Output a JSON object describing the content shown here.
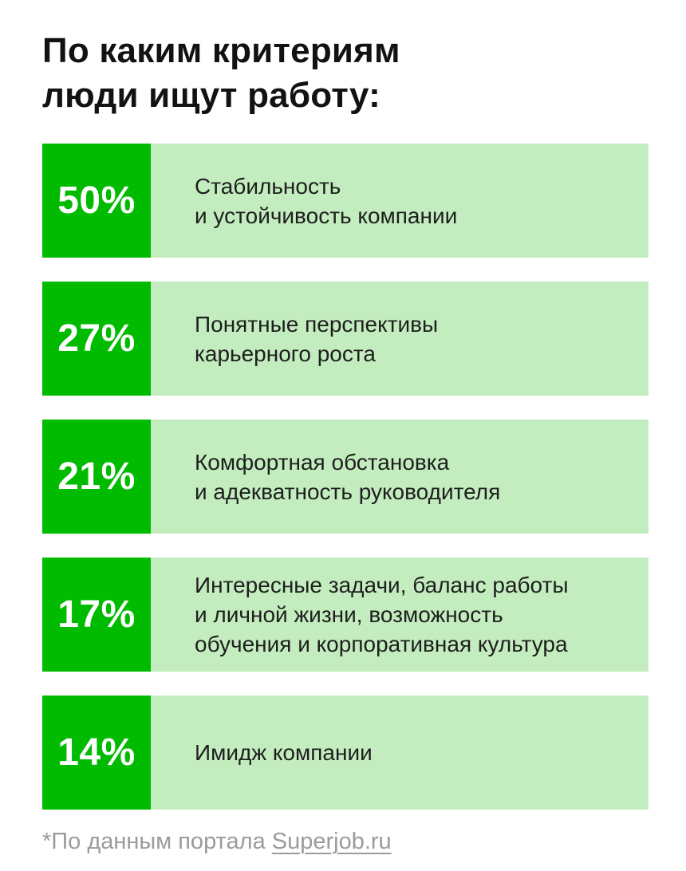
{
  "title": {
    "text": "По каким критериям\nлюди ищут работу:"
  },
  "rows": [
    {
      "percent": "50%",
      "label": "Стабильность\nи устойчивость компании"
    },
    {
      "percent": "27%",
      "label": "Понятные перспективы\nкарьерного роста"
    },
    {
      "percent": "21%",
      "label": "Комфортная обстановка\nи адекватность руководителя"
    },
    {
      "percent": "17%",
      "label": "Интересные задачи, баланс работы\nи личной жизни, возможность\nобучения и корпоративная культура"
    },
    {
      "percent": "14%",
      "label": "Имидж компании"
    }
  ],
  "footer": {
    "prefix": "*По данным портала ",
    "link": "Superjob.ru"
  },
  "colors": {
    "accent_green": "#00BB00",
    "light_green": "#C3EDBF",
    "title_color": "#121212",
    "label_color": "#1E1E1E",
    "footer_gray": "#9B9B9B",
    "background": "#FFFFFF"
  },
  "chart_data": {
    "type": "bar",
    "orientation": "horizontal",
    "title": "По каким критериям люди ищут работу:",
    "categories": [
      "Стабильность и устойчивость компании",
      "Понятные перспективы карьерного роста",
      "Комфортная обстановка и адекватность руководителя",
      "Интересные задачи, баланс работы и личной жизни, возможность обучения и корпоративная культура",
      "Имидж компании"
    ],
    "values": [
      50,
      27,
      21,
      17,
      14
    ],
    "unit": "%",
    "value_label_position": "left-badge",
    "bars_equal_length": true,
    "source_note": "*По данным портала Superjob.ru"
  }
}
